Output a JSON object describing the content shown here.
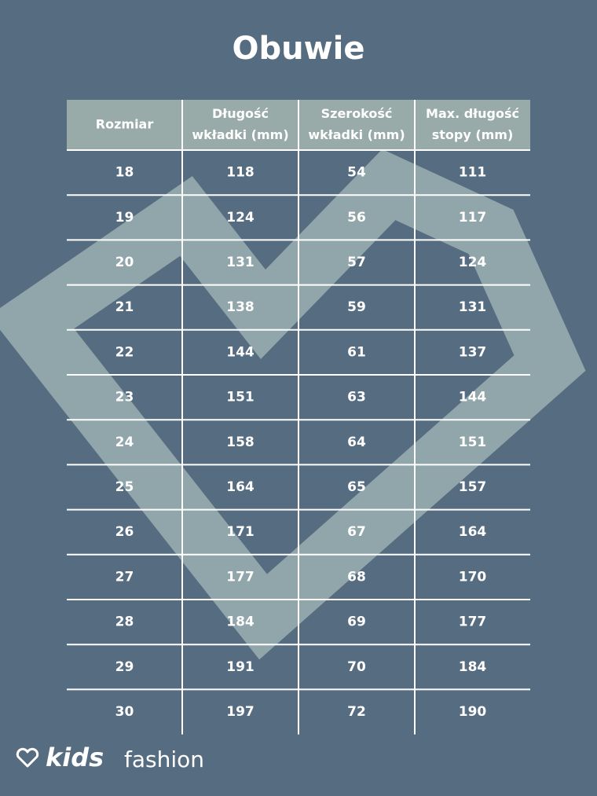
{
  "title": "Obuwie",
  "table": {
    "header": [
      [
        "Rozmiar"
      ],
      [
        "Długość",
        "wkładki (mm)"
      ],
      [
        "Szerokość",
        "wkładki (mm)"
      ],
      [
        "Max. długość",
        "stopy (mm)"
      ]
    ],
    "rows": [
      [
        18,
        118,
        54,
        111
      ],
      [
        19,
        124,
        56,
        117
      ],
      [
        20,
        131,
        57,
        124
      ],
      [
        21,
        138,
        59,
        131
      ],
      [
        22,
        144,
        61,
        137
      ],
      [
        23,
        151,
        63,
        144
      ],
      [
        24,
        158,
        64,
        151
      ],
      [
        25,
        164,
        65,
        157
      ],
      [
        26,
        171,
        67,
        164
      ],
      [
        27,
        177,
        68,
        170
      ],
      [
        28,
        184,
        69,
        177
      ],
      [
        29,
        191,
        70,
        184
      ],
      [
        30,
        197,
        72,
        190
      ]
    ]
  },
  "brand": {
    "name": "kids",
    "suffix": "fashion"
  }
}
